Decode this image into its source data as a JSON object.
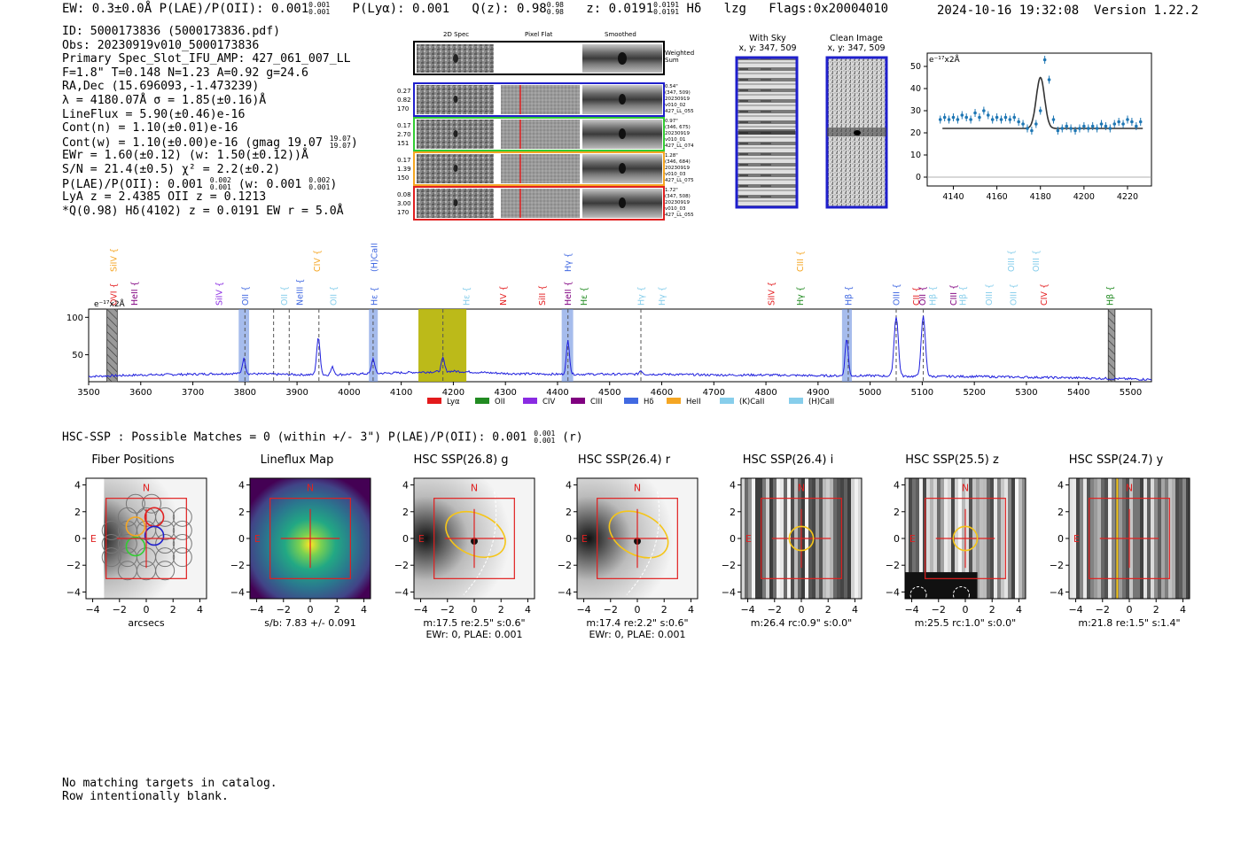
{
  "header": {
    "summary_line": "EW: 0.3±0.0Å  P(LAE)/P(OII): 0.001",
    "plae_frac": [
      "0.001",
      "0.001"
    ],
    "plya": "P(Lyα): 0.001",
    "q": "Q(z): 0.98",
    "q_frac": [
      "0.98",
      "0.98"
    ],
    "z": "z: 0.0191",
    "z_frac": [
      "0.0191",
      "0.0191"
    ],
    "line_id": "Hδ",
    "tag": "lzg",
    "flags": "Flags:0x20004010",
    "datetime": "2024-10-16 19:32:08",
    "version": "Version 1.22.2"
  },
  "info": {
    "id": "ID: 5000173836 (5000173836.pdf)",
    "obs": "Obs: 20230919v010_5000173836",
    "primary": "Primary Spec_Slot_IFU_AMP: 427_061_007_LL",
    "fiber": "F=1.8\"  T=0.148  N=1.23  A=0.92  g=24.6",
    "radec": "RA,Dec (15.696093,-1.473239)",
    "lambda": "λ = 4180.07Å  σ = 1.85(±0.16)Å",
    "lineflux": "LineFlux = 5.90(±0.46)e-16",
    "contn": "Cont(n) = 1.10(±0.01)e-16",
    "contw": "Cont(w) = 1.10(±0.00)e-16 (gmag 19.07",
    "contw_frac": [
      "19.07",
      "19.07"
    ],
    "ewr": "EWr = 1.60(±0.12) (w: 1.50(±0.12))Å",
    "sn": "S/N = 21.4(±0.5)  χ² = 2.2(±0.2)",
    "plae": "P(LAE)/P(OII): 0.001",
    "plae_frac": [
      "0.002",
      "0.001"
    ],
    "plae_w": "(w: 0.001",
    "plae_w_frac": [
      "0.002",
      "0.001"
    ],
    "lya": "LyA z = 2.4385  OII z = 0.1213",
    "q": "*Q(0.98) Hδ(4102) z = 0.0191  EW r = 5.0Å"
  },
  "cutouts": {
    "headers": [
      "2D Spec",
      "Pixel Flat",
      "Smoothed"
    ],
    "weighted_label": "Weighted Sum",
    "rows": [
      {
        "left": [
          "0.27",
          "0.82",
          "170"
        ],
        "right": [
          "0.54\"",
          "(347, 509)",
          "20230919",
          "v010_02",
          "427_LL_055"
        ],
        "color": "#1f1fcc"
      },
      {
        "left": [
          "0.17",
          "2.70",
          "151"
        ],
        "right": [
          "0.97\"",
          "(346, 675)",
          "20230919",
          "v010_01",
          "427_LL_074"
        ],
        "color": "#33cc33"
      },
      {
        "left": [
          "0.17",
          "1.39",
          "150"
        ],
        "right": [
          "1.28\"",
          "(346, 684)",
          "20230919",
          "v010_03",
          "427_LL_075"
        ],
        "color": "#f5a623"
      },
      {
        "left": [
          "0.08",
          "3.00",
          "170"
        ],
        "right": [
          "1.72\"",
          "(347, 508)",
          "20230919",
          "v010_03",
          "427_LL_055"
        ],
        "color": "#e02020"
      }
    ]
  },
  "sky": {
    "with_sky": "With Sky",
    "with_sky_xy": "x, y: 347, 509",
    "clean": "Clean Image",
    "clean_xy": "x, y: 347, 509"
  },
  "zoom_chart": {
    "unit": "e⁻¹⁷x2Å",
    "x_ticks": [
      4140,
      4160,
      4180,
      4200,
      4220
    ],
    "y_ticks": [
      0,
      10,
      20,
      30,
      40,
      50
    ],
    "xlim": [
      4128,
      4231
    ],
    "ylim": [
      -4,
      56
    ],
    "points_x": [
      4134,
      4136,
      4138,
      4140,
      4142,
      4144,
      4146,
      4148,
      4150,
      4152,
      4154,
      4156,
      4158,
      4160,
      4162,
      4164,
      4166,
      4168,
      4170,
      4172,
      4174,
      4176,
      4178,
      4180,
      4182,
      4184,
      4186,
      4188,
      4190,
      4192,
      4194,
      4196,
      4198,
      4200,
      4202,
      4204,
      4206,
      4208,
      4210,
      4212,
      4214,
      4216,
      4218,
      4220,
      4222,
      4224,
      4226
    ],
    "points_y": [
      26,
      27,
      26,
      27,
      26,
      28,
      27,
      26,
      29,
      27,
      30,
      28,
      26,
      27,
      26,
      27,
      26,
      27,
      25,
      24,
      22,
      21,
      24,
      30,
      53,
      44,
      26,
      21,
      22,
      23,
      22,
      21,
      22,
      23,
      22,
      23,
      22,
      24,
      23,
      22,
      24,
      25,
      24,
      26,
      25,
      23,
      25
    ],
    "fit_baseline": 22,
    "fit_peak_x": 4180,
    "fit_peak_y": 45,
    "fit_sigma": 1.9,
    "fit_x_range": [
      4135,
      4227
    ]
  },
  "chart_data": {
    "type": "line",
    "title": "",
    "xlabel": "",
    "ylabel": "e⁻¹⁷x2Å",
    "xlim": [
      3500,
      5540
    ],
    "ylim": [
      14,
      111
    ],
    "x_ticks": [
      3500,
      3600,
      3700,
      3800,
      3900,
      4000,
      4100,
      4200,
      4300,
      4400,
      4500,
      4600,
      4700,
      4800,
      4900,
      5000,
      5100,
      5200,
      5300,
      5400,
      5500
    ],
    "y_ticks": [
      50,
      100
    ],
    "baseline_anchors": [
      [
        3500,
        21
      ],
      [
        3550,
        22
      ],
      [
        3600,
        23
      ],
      [
        3700,
        24
      ],
      [
        3780,
        25
      ],
      [
        3850,
        24
      ],
      [
        3950,
        23
      ],
      [
        4050,
        25
      ],
      [
        4150,
        27
      ],
      [
        4200,
        28
      ],
      [
        4300,
        25
      ],
      [
        4400,
        24
      ],
      [
        4500,
        24
      ],
      [
        4600,
        24
      ],
      [
        4700,
        23
      ],
      [
        4800,
        23
      ],
      [
        4900,
        22
      ],
      [
        5000,
        22
      ],
      [
        5100,
        21
      ],
      [
        5200,
        21
      ],
      [
        5300,
        20
      ],
      [
        5400,
        19
      ],
      [
        5540,
        17
      ]
    ],
    "peaks": [
      {
        "x": 3798,
        "h": 20,
        "w": 3
      },
      {
        "x": 3939,
        "h": 20,
        "w": 3
      },
      {
        "x": 3942,
        "h": 35,
        "w": 3
      },
      {
        "x": 3968,
        "h": 10,
        "w": 3
      },
      {
        "x": 4046,
        "h": 20,
        "w": 3
      },
      {
        "x": 4180,
        "h": 18,
        "w": 3
      },
      {
        "x": 4420,
        "h": 45,
        "w": 3
      },
      {
        "x": 4560,
        "h": 5,
        "w": 3
      },
      {
        "x": 4955,
        "h": 50,
        "w": 3
      },
      {
        "x": 5050,
        "h": 80,
        "w": 4
      },
      {
        "x": 5102,
        "h": 80,
        "w": 4
      }
    ],
    "legend": [
      {
        "label": "Lyα",
        "color": "#e31a1c"
      },
      {
        "label": "OII",
        "color": "#228b22"
      },
      {
        "label": "CIV",
        "color": "#8a2be2"
      },
      {
        "label": "CIII",
        "color": "#800080"
      },
      {
        "label": "Hδ",
        "color": "#4169e1"
      },
      {
        "label": "HeII",
        "color": "#f5a623"
      },
      {
        "label": "(K)CaII",
        "color": "#87ceeb"
      },
      {
        "label": "(H)CaII",
        "color": "#87ceeb"
      }
    ],
    "line_labels": [
      {
        "x": 3548,
        "t": "SiIV",
        "c": "#f5a623",
        "row": 0
      },
      {
        "x": 3548,
        "t": "OVI",
        "c": "#e31a1c",
        "row": 1
      },
      {
        "x": 3588,
        "t": "HeII",
        "c": "#800080",
        "row": 1
      },
      {
        "x": 3750,
        "t": "SiIV",
        "c": "#8a2be2",
        "row": 1
      },
      {
        "x": 3800,
        "t": "OII",
        "c": "#4169e1",
        "row": 1
      },
      {
        "x": 3875,
        "t": "OII",
        "c": "#87ceeb",
        "row": 1
      },
      {
        "x": 3905,
        "t": "NeIII",
        "c": "#4169e1",
        "row": 1
      },
      {
        "x": 3938,
        "t": "CIV",
        "c": "#f5a623",
        "row": 0
      },
      {
        "x": 3970,
        "t": "OII",
        "c": "#87ceeb",
        "row": 1
      },
      {
        "x": 4048,
        "t": "(H)CaII",
        "c": "#4169e1",
        "row": 0
      },
      {
        "x": 4048,
        "t": "Hε",
        "c": "#4169e1",
        "row": 1
      },
      {
        "x": 4225,
        "t": "Hε",
        "c": "#87ceeb",
        "row": 1
      },
      {
        "x": 4295,
        "t": "NV",
        "c": "#e31a1c",
        "row": 1
      },
      {
        "x": 4370,
        "t": "SiII",
        "c": "#e31a1c",
        "row": 1
      },
      {
        "x": 4420,
        "t": "Hγ",
        "c": "#4169e1",
        "row": 0
      },
      {
        "x": 4420,
        "t": "HeII",
        "c": "#800080",
        "row": 1
      },
      {
        "x": 4450,
        "t": "Hε",
        "c": "#228b22",
        "row": 1
      },
      {
        "x": 4560,
        "t": "Hγ",
        "c": "#87ceeb",
        "row": 1
      },
      {
        "x": 4600,
        "t": "Hγ",
        "c": "#87ceeb",
        "row": 1
      },
      {
        "x": 4810,
        "t": "SiIV",
        "c": "#e31a1c",
        "row": 1
      },
      {
        "x": 4865,
        "t": "CIII",
        "c": "#f5a623",
        "row": 0
      },
      {
        "x": 4865,
        "t": "Hγ",
        "c": "#228b22",
        "row": 1
      },
      {
        "x": 4958,
        "t": "Hβ",
        "c": "#4169e1",
        "row": 1
      },
      {
        "x": 5050,
        "t": "OIII",
        "c": "#4169e1",
        "row": 1
      },
      {
        "x": 5088,
        "t": "CII",
        "c": "#e31a1c",
        "row": 1
      },
      {
        "x": 5100,
        "t": "OII",
        "c": "#800080",
        "row": 1
      },
      {
        "x": 5120,
        "t": "Hβ",
        "c": "#87ceeb",
        "row": 1
      },
      {
        "x": 5160,
        "t": "CIII",
        "c": "#800080",
        "row": 1
      },
      {
        "x": 5178,
        "t": "Hβ",
        "c": "#87ceeb",
        "row": 1
      },
      {
        "x": 5228,
        "t": "OIII",
        "c": "#87ceeb",
        "row": 1
      },
      {
        "x": 5270,
        "t": "OIII",
        "c": "#87ceeb",
        "row": 0
      },
      {
        "x": 5275,
        "t": "OIII",
        "c": "#87ceeb",
        "row": 1
      },
      {
        "x": 5318,
        "t": "OIII",
        "c": "#87ceeb",
        "row": 0
      },
      {
        "x": 5333,
        "t": "CIV",
        "c": "#e31a1c",
        "row": 1
      },
      {
        "x": 5460,
        "t": "Hβ",
        "c": "#228b22",
        "row": 1
      }
    ],
    "dashed_lines": [
      3800,
      3855,
      3885,
      3942,
      4046,
      4180,
      4420,
      4560,
      4958,
      5050,
      5102
    ],
    "blue_bands": [
      [
        3788,
        3808
      ],
      [
        4038,
        4055
      ],
      [
        4408,
        4430
      ],
      [
        4946,
        4965
      ]
    ],
    "hatch_bands": [
      [
        3535,
        3555
      ],
      [
        5457,
        5470
      ]
    ],
    "yellow_band": [
      4133,
      4225
    ]
  },
  "hsc": {
    "title": "HSC-SSP : Possible Matches = 0 (within +/- 3\")  P(LAE)/P(OII): 0.001",
    "title_frac": [
      "0.001",
      "0.001"
    ],
    "title_suffix": "(r)",
    "panels": [
      {
        "title": "Fiber Positions",
        "sub1": "arcsecs",
        "sub2": ""
      },
      {
        "title": "Lineflux Map",
        "sub1": "s/b: 7.83 +/- 0.091",
        "sub2": ""
      },
      {
        "title": "HSC SSP(26.8) g",
        "sub1": "m:17.5  re:2.5\"  s:0.6\"",
        "sub2": "EWr: 0, PLAE: 0.001"
      },
      {
        "title": "HSC SSP(26.4) r",
        "sub1": "m:17.4  re:2.2\"  s:0.6\"",
        "sub2": "EWr: 0, PLAE: 0.001"
      },
      {
        "title": "HSC SSP(26.4) i",
        "sub1": "m:26.4  rc:0.9\"  s:0.0\"",
        "sub2": ""
      },
      {
        "title": "HSC SSP(25.5) z",
        "sub1": "m:25.5  rc:1.0\"  s:0.0\"",
        "sub2": ""
      },
      {
        "title": "HSC SSP(24.7) y",
        "sub1": "m:21.8  re:1.5\"  s:1.4\"",
        "sub2": ""
      }
    ],
    "axis_ticks": [
      "4",
      "2",
      "0",
      "−2",
      "−4"
    ],
    "x_ticks": [
      "−4",
      "−2",
      "0",
      "2",
      "4"
    ],
    "north": "N",
    "east": "E"
  },
  "footer": {
    "line1": "No matching targets in catalog.",
    "line2": "Row intentionally blank."
  }
}
